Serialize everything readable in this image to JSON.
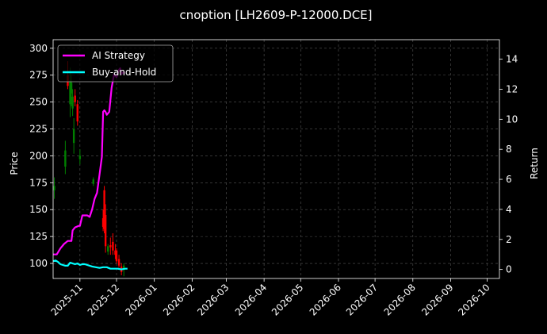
{
  "chart_data": {
    "type": "line",
    "title": "cnoption [LH2609-P-12000.DCE]",
    "ylabel_left": "Price",
    "ylabel_right": "Return",
    "ylim_left": [
      86,
      308
    ],
    "ylim_right": [
      -0.6,
      15.3
    ],
    "xlim": [
      "2025-10-10",
      "2026-10-11"
    ],
    "yticks_left": [
      100,
      125,
      150,
      175,
      200,
      225,
      250,
      275,
      300
    ],
    "yticks_right": [
      0,
      2,
      4,
      6,
      8,
      10,
      12,
      14
    ],
    "xticks": [
      "2025-11",
      "2025-12",
      "2026-01",
      "2026-02",
      "2026-03",
      "2026-04",
      "2026-05",
      "2026-06",
      "2026-07",
      "2026-08",
      "2026-09",
      "2026-10"
    ],
    "grid": true,
    "legend_position": "top-left",
    "colors": {
      "background": "#000000",
      "up": "#008000",
      "down": "#ff0000",
      "ai": "#ff00ff",
      "bh": "#00ffff"
    },
    "series": [
      {
        "name": "AI Strategy",
        "axis": "right",
        "x": [
          "2025-10-10",
          "2025-10-13",
          "2025-10-16",
          "2025-10-19",
          "2025-10-22",
          "2025-10-25",
          "2025-10-26",
          "2025-10-28",
          "2025-10-31",
          "2025-11-01",
          "2025-11-03",
          "2025-11-05",
          "2025-11-07",
          "2025-11-09",
          "2025-11-11",
          "2025-11-13",
          "2025-11-15",
          "2025-11-17",
          "2025-11-19",
          "2025-11-20",
          "2025-11-21",
          "2025-11-22",
          "2025-11-23",
          "2025-11-25",
          "2025-11-27",
          "2025-11-29",
          "2025-12-01",
          "2025-12-03",
          "2025-12-04",
          "2025-12-05",
          "2025-12-06",
          "2025-12-08"
        ],
        "values": [
          1.0,
          1.0,
          1.4,
          1.7,
          1.9,
          1.9,
          2.6,
          2.8,
          2.9,
          2.9,
          3.6,
          3.6,
          3.6,
          3.5,
          4.0,
          4.7,
          5.1,
          6.3,
          7.5,
          10.5,
          10.6,
          10.5,
          10.3,
          10.5,
          12.1,
          13.0,
          12.8,
          13.3,
          13.4,
          13.0,
          13.1,
          13.1
        ]
      },
      {
        "name": "Buy-and-Hold",
        "axis": "right",
        "x": [
          "2025-10-10",
          "2025-10-12",
          "2025-10-14",
          "2025-10-16",
          "2025-10-18",
          "2025-10-20",
          "2025-10-22",
          "2025-10-24",
          "2025-10-26",
          "2025-10-28",
          "2025-10-30",
          "2025-11-01",
          "2025-11-03",
          "2025-11-05",
          "2025-11-07",
          "2025-11-09",
          "2025-11-11",
          "2025-11-14",
          "2025-11-17",
          "2025-11-20",
          "2025-11-23",
          "2025-11-26",
          "2025-11-29",
          "2025-12-02",
          "2025-12-05",
          "2025-12-08",
          "2025-12-10"
        ],
        "values": [
          0.55,
          0.6,
          0.5,
          0.35,
          0.3,
          0.25,
          0.25,
          0.45,
          0.4,
          0.35,
          0.4,
          0.3,
          0.35,
          0.35,
          0.3,
          0.25,
          0.2,
          0.15,
          0.1,
          0.15,
          0.15,
          0.05,
          0.05,
          0.05,
          0.0,
          0.05,
          0.05
        ]
      }
    ],
    "candles": {
      "axis": "left",
      "items": [
        {
          "date": "2025-10-11",
          "open": 168,
          "high": 180,
          "low": 160,
          "close": 172
        },
        {
          "date": "2025-10-20",
          "open": 190,
          "high": 214,
          "low": 183,
          "close": 205
        },
        {
          "date": "2025-10-22",
          "open": 275,
          "high": 288,
          "low": 262,
          "close": 265
        },
        {
          "date": "2025-10-24",
          "open": 248,
          "high": 282,
          "low": 236,
          "close": 270
        },
        {
          "date": "2025-10-25",
          "open": 258,
          "high": 276,
          "low": 246,
          "close": 268
        },
        {
          "date": "2025-10-26",
          "open": 244,
          "high": 262,
          "low": 237,
          "close": 255
        },
        {
          "date": "2025-10-27",
          "open": 212,
          "high": 235,
          "low": 202,
          "close": 225
        },
        {
          "date": "2025-10-28",
          "open": 256,
          "high": 262,
          "low": 246,
          "close": 250
        },
        {
          "date": "2025-10-30",
          "open": 248,
          "high": 252,
          "low": 228,
          "close": 232
        },
        {
          "date": "2025-11-01",
          "open": 197,
          "high": 206,
          "low": 192,
          "close": 200
        },
        {
          "date": "2025-11-12",
          "open": 174,
          "high": 180,
          "low": 172,
          "close": 178
        },
        {
          "date": "2025-11-20",
          "open": 142,
          "high": 150,
          "low": 130,
          "close": 134
        },
        {
          "date": "2025-11-21",
          "open": 168,
          "high": 172,
          "low": 128,
          "close": 132
        },
        {
          "date": "2025-11-22",
          "open": 145,
          "high": 155,
          "low": 110,
          "close": 116
        },
        {
          "date": "2025-11-24",
          "open": 111,
          "high": 118,
          "low": 108,
          "close": 116
        },
        {
          "date": "2025-11-26",
          "open": 117,
          "high": 124,
          "low": 108,
          "close": 115
        },
        {
          "date": "2025-11-28",
          "open": 120,
          "high": 128,
          "low": 108,
          "close": 112
        },
        {
          "date": "2025-11-30",
          "open": 112,
          "high": 118,
          "low": 104,
          "close": 108
        },
        {
          "date": "2025-12-01",
          "open": 112,
          "high": 114,
          "low": 100,
          "close": 102
        },
        {
          "date": "2025-12-03",
          "open": 104,
          "high": 108,
          "low": 96,
          "close": 98
        },
        {
          "date": "2025-12-05",
          "open": 97,
          "high": 100,
          "low": 89,
          "close": 92
        },
        {
          "date": "2025-12-07",
          "open": 94,
          "high": 100,
          "low": 88,
          "close": 98
        }
      ]
    }
  }
}
